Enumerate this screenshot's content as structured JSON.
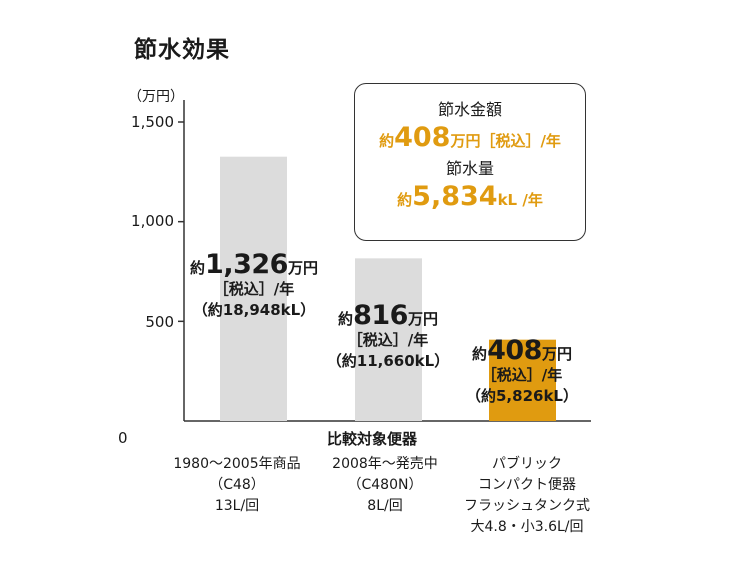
{
  "title": "節水効果",
  "unit_label": "（万円）",
  "chart_data": {
    "type": "bar",
    "ylim": [
      0,
      1500
    ],
    "yticks": [
      "1,500",
      "1,000",
      "500",
      "0"
    ],
    "ytick_values": [
      1500,
      1000,
      500,
      0
    ],
    "xlabel": "比較対象便器",
    "categories": [
      [
        "1980～2005年商品",
        "（C48）",
        "13L/回"
      ],
      [
        "2008年～発売中",
        "（C480N）",
        "8L/回"
      ],
      [
        "パブリック",
        "コンパクト便器",
        "フラッシュタンク式",
        "大4.8・小3.6L/回"
      ]
    ],
    "values": [
      1326,
      816,
      408
    ],
    "bar_colors": [
      "#dcdcdc",
      "#dcdcdc",
      "#e09b10"
    ],
    "data_labels": [
      {
        "prefix": "約",
        "value": "1,326",
        "unit": "万円",
        "line2": "［税込］/年",
        "line3": "（約18,948kL）"
      },
      {
        "prefix": "約",
        "value": "816",
        "unit": "万円",
        "line2": "［税込］/年",
        "line3": "（約11,660kL）"
      },
      {
        "prefix": "約",
        "value": "408",
        "unit": "万円",
        "line2": "［税込］/年",
        "line3": "（約5,826kL）"
      }
    ]
  },
  "summary": {
    "amount_label": "節水金額",
    "amount_prefix": "約",
    "amount_value": "408",
    "amount_unit": "万円［税込］/年",
    "volume_label": "節水量",
    "volume_prefix": "約",
    "volume_value": "5,834",
    "volume_unit": "kL /年"
  },
  "colors": {
    "accent": "#e09b10",
    "bar": "#dcdcdc",
    "axis": "#333333"
  }
}
